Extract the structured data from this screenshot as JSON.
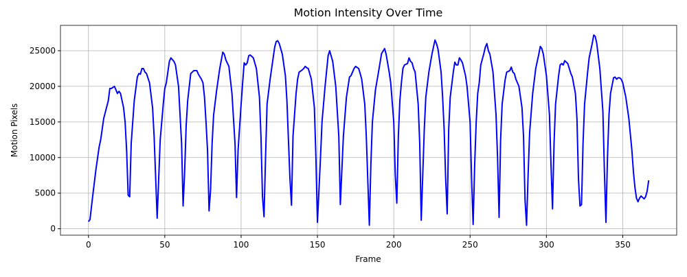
{
  "chart_data": {
    "type": "line",
    "title": "Motion Intensity Over Time",
    "x_label": "Frame",
    "y_label": "Motion Pixels",
    "color": "#0000ff",
    "grid": true,
    "xlim": [
      -18.35,
      385.35
    ],
    "ylim": [
      -900,
      28560
    ],
    "xticks": [
      0,
      50,
      100,
      150,
      200,
      250,
      300,
      350
    ],
    "yticks": [
      0,
      5000,
      10000,
      15000,
      20000,
      25000
    ],
    "x": [
      0,
      1,
      3,
      5,
      7,
      8,
      10,
      13,
      14,
      15,
      17,
      19,
      20,
      21,
      23,
      24,
      25,
      26,
      27,
      28,
      30,
      32,
      33,
      34,
      35,
      36,
      37,
      38,
      40,
      42,
      43,
      45,
      47,
      49,
      50,
      51,
      53,
      54,
      56,
      57,
      59,
      61,
      62,
      63,
      64,
      65,
      67,
      69,
      71,
      72,
      74,
      75,
      76,
      77,
      78,
      79,
      80,
      81,
      82,
      84,
      86,
      88,
      89,
      90,
      92,
      94,
      96,
      97,
      98,
      100,
      101,
      102,
      103,
      104,
      105,
      106,
      108,
      110,
      112,
      113,
      114,
      115,
      116,
      117,
      119,
      121,
      122,
      123,
      124,
      125,
      127,
      129,
      130,
      132,
      133,
      134,
      136,
      137,
      138,
      140,
      141,
      142,
      143,
      144,
      146,
      148,
      149,
      150,
      152,
      153,
      155,
      157,
      158,
      160,
      162,
      164,
      165,
      167,
      169,
      171,
      172,
      174,
      175,
      177,
      178,
      179,
      181,
      182,
      184,
      185,
      186,
      188,
      190,
      192,
      194,
      195,
      197,
      198,
      200,
      201,
      202,
      203,
      204,
      205,
      206,
      207,
      209,
      210,
      211,
      212,
      213,
      214,
      216,
      217,
      218,
      220,
      221,
      223,
      225,
      226,
      227,
      228,
      229,
      231,
      232,
      233,
      234,
      235,
      236,
      237,
      239,
      240,
      241,
      242,
      243,
      244,
      245,
      247,
      248,
      250,
      251,
      252,
      253,
      254,
      255,
      256,
      257,
      259,
      260,
      261,
      262,
      263,
      265,
      266,
      267,
      268,
      269,
      270,
      271,
      273,
      274,
      276,
      277,
      278,
      279,
      280,
      282,
      284,
      285,
      286,
      287,
      288,
      289,
      291,
      293,
      295,
      296,
      297,
      298,
      300,
      302,
      303,
      304,
      305,
      306,
      308,
      309,
      310,
      311,
      312,
      313,
      314,
      316,
      317,
      319,
      320,
      321,
      322,
      323,
      324,
      325,
      327,
      328,
      330,
      331,
      332,
      333,
      335,
      337,
      338,
      339,
      340,
      341,
      342,
      344,
      345,
      346,
      347,
      348,
      349,
      350,
      352,
      354,
      356,
      357,
      358,
      359,
      360,
      361,
      362,
      363,
      364,
      365,
      366,
      367
    ],
    "values": [
      1000,
      1300,
      5000,
      8500,
      11500,
      12500,
      15500,
      18000,
      19700,
      19700,
      20000,
      19000,
      19300,
      19000,
      17000,
      15000,
      11000,
      4700,
      4500,
      12000,
      18000,
      21300,
      21800,
      21700,
      22500,
      22500,
      22000,
      21800,
      20500,
      17000,
      13000,
      1500,
      12500,
      17500,
      19700,
      20500,
      23500,
      24000,
      23500,
      23000,
      20000,
      12000,
      3200,
      8000,
      14500,
      18000,
      21800,
      22200,
      22200,
      21700,
      21000,
      20500,
      18500,
      15000,
      11000,
      2500,
      5500,
      12000,
      16000,
      19500,
      22500,
      24800,
      24500,
      23700,
      22800,
      19000,
      12000,
      4400,
      11000,
      17500,
      20500,
      23300,
      23000,
      23300,
      24300,
      24400,
      24000,
      22500,
      18500,
      13000,
      4500,
      1700,
      10000,
      17500,
      21000,
      24000,
      25500,
      26300,
      26400,
      26000,
      24500,
      21500,
      18000,
      7000,
      3300,
      13000,
      19000,
      21000,
      22000,
      22300,
      22500,
      22800,
      22600,
      22500,
      21000,
      17000,
      10000,
      900,
      10000,
      15000,
      20000,
      24300,
      25000,
      23500,
      20000,
      13000,
      3400,
      13000,
      18500,
      21300,
      21500,
      22500,
      22800,
      22500,
      21800,
      21000,
      17500,
      13000,
      500,
      9000,
      15000,
      19500,
      22000,
      24600,
      25300,
      24500,
      22000,
      20500,
      15000,
      7500,
      3600,
      13000,
      18000,
      20500,
      22500,
      23000,
      23200,
      24000,
      23500,
      23300,
      22500,
      22000,
      17500,
      12000,
      1200,
      14000,
      18500,
      22000,
      24500,
      25500,
      26500,
      26000,
      25200,
      22000,
      18500,
      14000,
      7000,
      2100,
      14000,
      18500,
      22000,
      23400,
      23000,
      23000,
      24000,
      23700,
      23300,
      21500,
      20000,
      15000,
      7000,
      600,
      9000,
      15000,
      19000,
      20500,
      23000,
      24600,
      25500,
      26000,
      25000,
      24500,
      22000,
      19000,
      16000,
      10000,
      1600,
      12500,
      17500,
      21000,
      22000,
      22200,
      22700,
      22000,
      21800,
      21000,
      20000,
      17000,
      13000,
      4000,
      500,
      7500,
      13500,
      19000,
      22500,
      24500,
      25600,
      25300,
      24500,
      21500,
      16000,
      9000,
      2800,
      12000,
      17500,
      21500,
      23000,
      23200,
      23000,
      23600,
      23400,
      23200,
      21800,
      21300,
      19000,
      15500,
      7000,
      3200,
      3400,
      12000,
      17500,
      22000,
      24000,
      26000,
      27200,
      27000,
      26000,
      22500,
      16500,
      8000,
      900,
      10000,
      16000,
      19000,
      21200,
      21300,
      21000,
      21200,
      21200,
      21000,
      20500,
      18500,
      15500,
      11000,
      8000,
      5800,
      4300,
      3800,
      4300,
      4600,
      4400,
      4200,
      4500,
      5300,
      6800
    ]
  }
}
